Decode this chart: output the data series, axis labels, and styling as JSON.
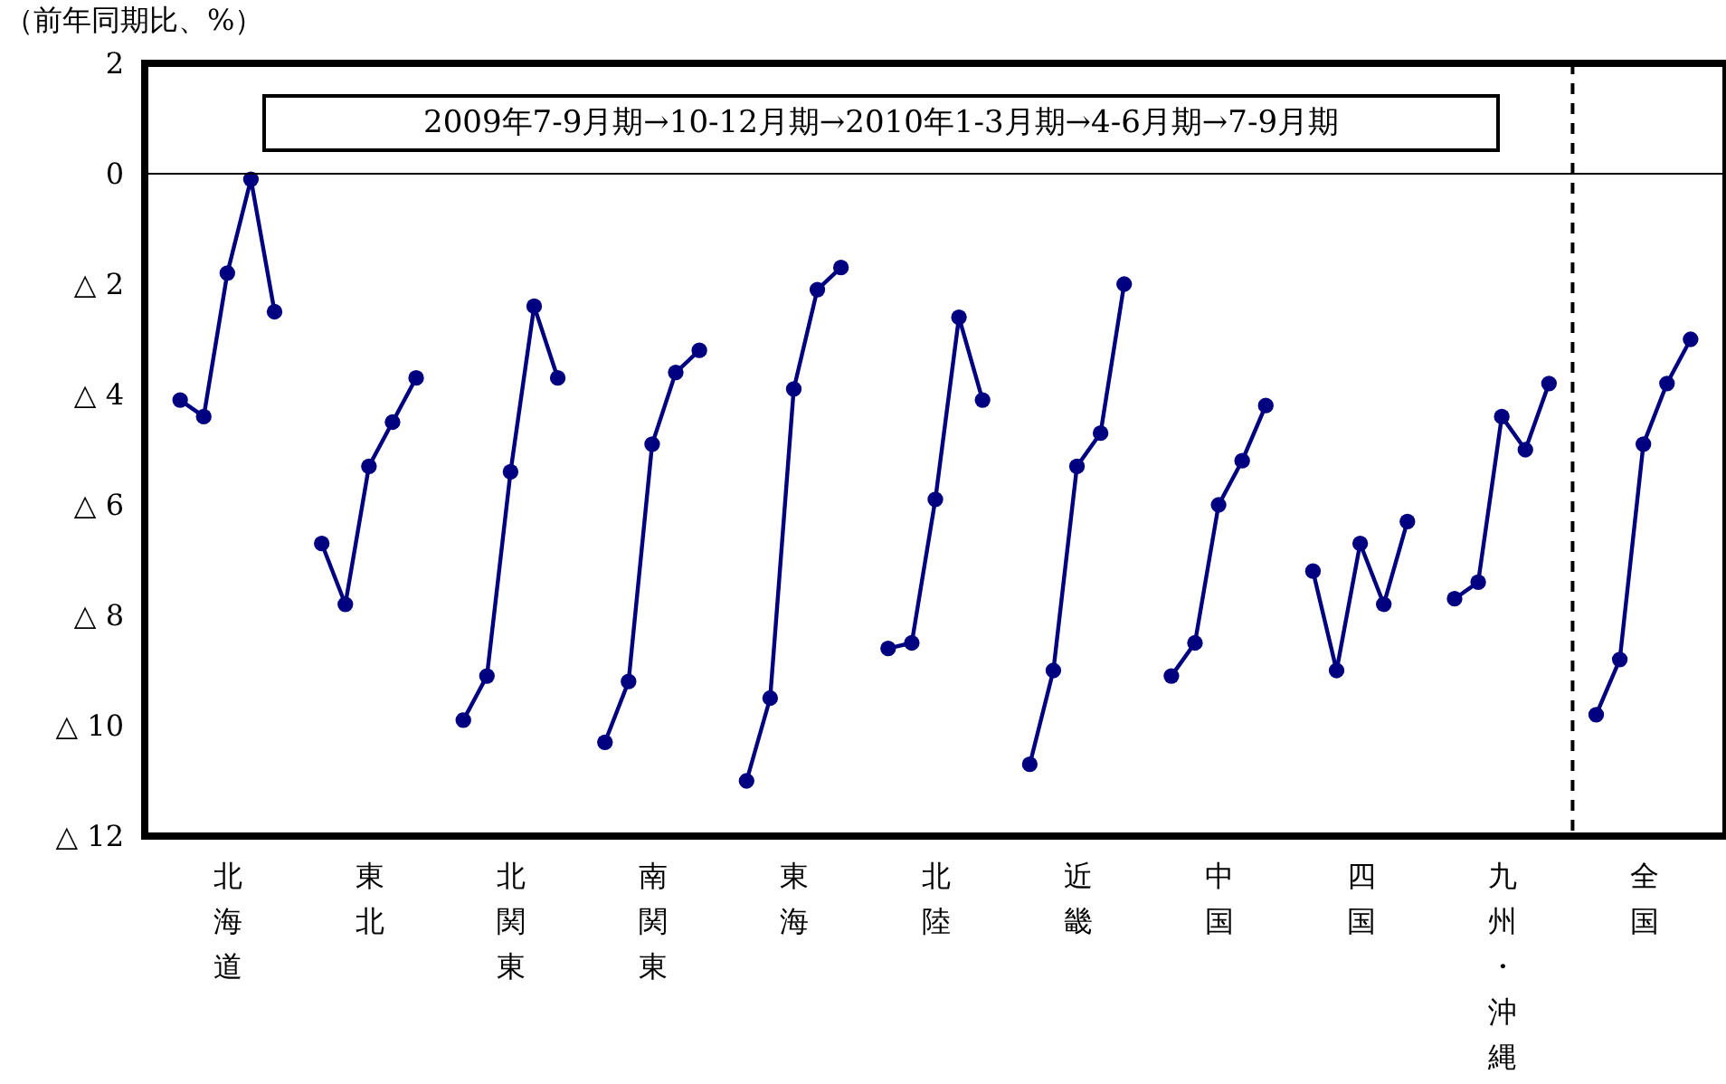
{
  "chart_data": {
    "type": "line",
    "ylabel": "（前年同期比、%）",
    "annotations": [
      "2009年7-9月期→10-12月期→2010年1-3月期→4-6月期→7-9月期"
    ],
    "categories": [
      null,
      null,
      "北海道",
      null,
      null,
      null,
      null,
      null,
      "東北",
      null,
      null,
      null,
      null,
      null,
      "北関東",
      null,
      null,
      null,
      null,
      null,
      "南関東",
      null,
      null,
      null,
      null,
      null,
      "東海",
      null,
      null,
      null,
      null,
      null,
      "北陸",
      null,
      null,
      null,
      null,
      null,
      "近畿",
      null,
      null,
      null,
      null,
      null,
      "中国",
      null,
      null,
      null,
      null,
      null,
      "四国",
      null,
      null,
      null,
      null,
      null,
      "九州・沖縄",
      null,
      null,
      null,
      null,
      null,
      "全国",
      null,
      null
    ],
    "ylim": [
      -12,
      2
    ],
    "yticks": [
      {
        "value": -12,
        "label": "△ 12"
      },
      {
        "value": -10,
        "label": "△ 10"
      },
      {
        "value": -8,
        "label": "△ 8"
      },
      {
        "value": -6,
        "label": "△ 6"
      },
      {
        "value": -4,
        "label": "△ 4"
      },
      {
        "value": -2,
        "label": "△ 2"
      },
      0,
      2
    ],
    "grid": false,
    "marker": "circle",
    "line_style": "solid",
    "ref_lines": [
      {
        "axis": "y",
        "value": 0,
        "color": "#000000",
        "line_style": "solid"
      }
    ],
    "series": [
      {
        "color": "#000080",
        "values": [
          -4.1,
          -4.4,
          -1.8,
          -0.1,
          -2.5,
          null,
          -6.7,
          -7.8,
          -5.3,
          -4.5,
          -3.7,
          null,
          -9.9,
          -9.1,
          -5.4,
          -2.4,
          -3.7,
          null,
          -10.3,
          -9.2,
          -4.9,
          -3.6,
          -3.2,
          null,
          -11.0,
          -9.5,
          -3.9,
          -2.1,
          -1.7,
          null,
          -8.6,
          -8.5,
          -5.9,
          -2.6,
          -4.1,
          null,
          -10.7,
          -9.0,
          -5.3,
          -4.7,
          -2.0,
          null,
          -9.1,
          -8.5,
          -6.0,
          -5.2,
          -4.2,
          null,
          -7.2,
          -9.0,
          -6.7,
          -7.8,
          -6.3,
          null,
          -7.7,
          -7.4,
          -4.4,
          -5.0,
          -3.8,
          null,
          -9.8,
          -8.8,
          -4.9,
          -3.8,
          -3.0
        ]
      }
    ]
  }
}
